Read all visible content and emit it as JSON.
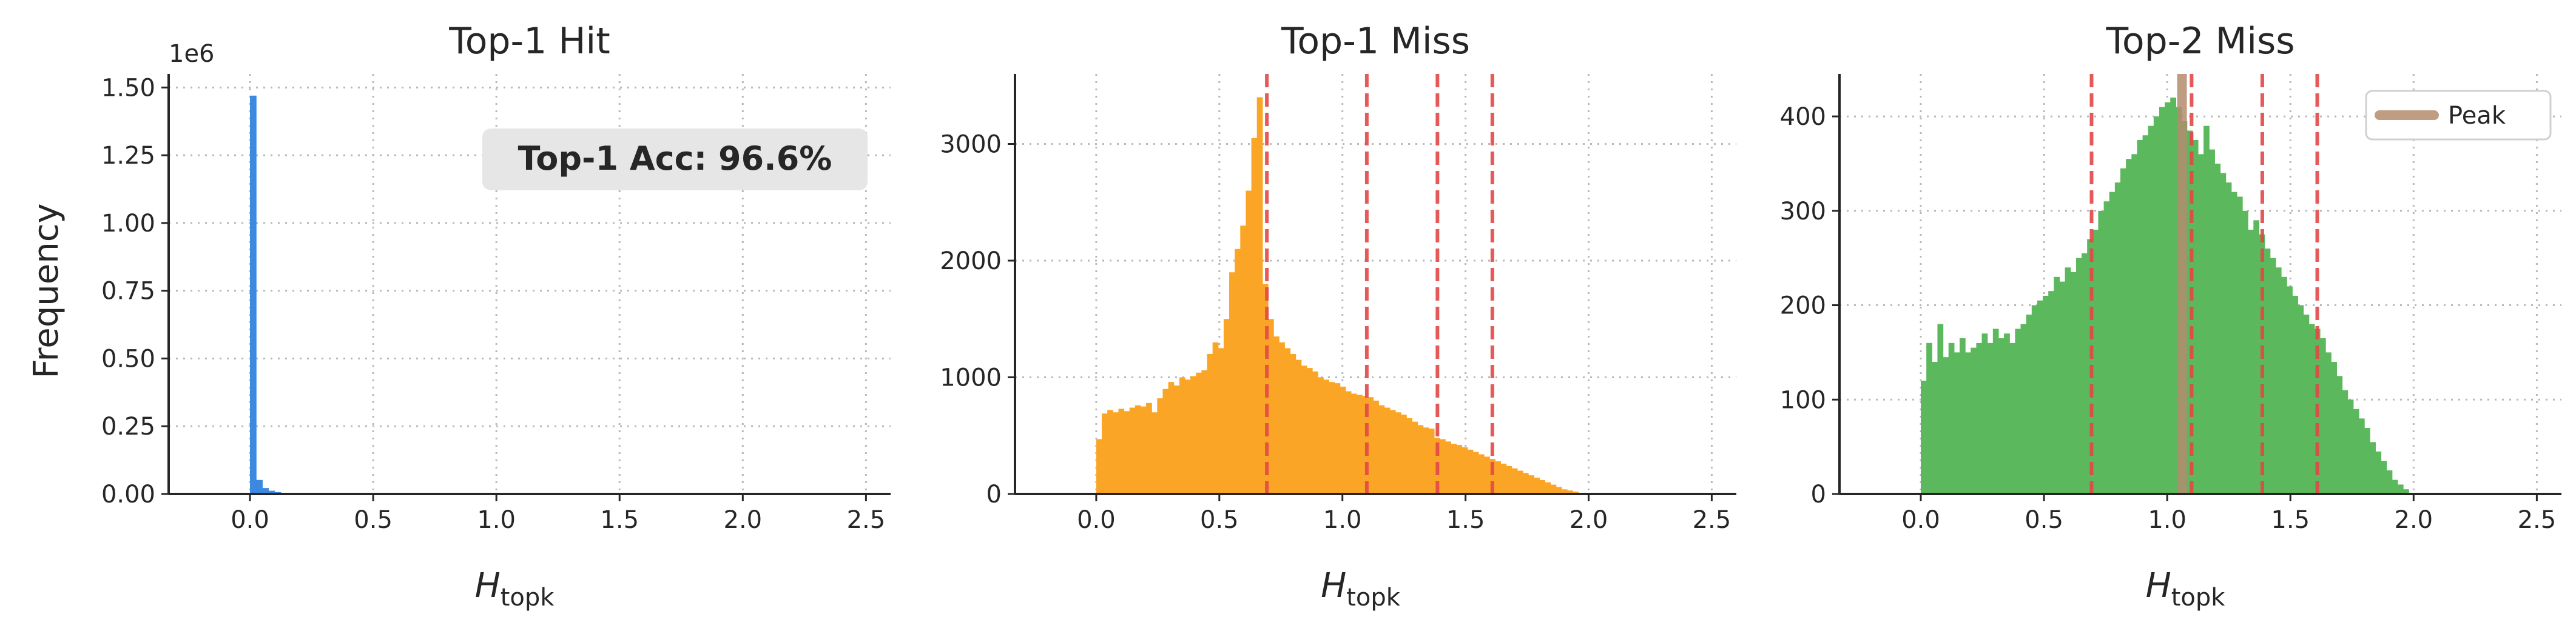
{
  "figure": {
    "ylabel": "Frequency",
    "xlabel_main": "H",
    "xlabel_sub": "topk"
  },
  "chart_data": [
    {
      "type": "bar",
      "title": "Top-1 Hit",
      "color": "#3b89e0",
      "xlim": [
        -0.33,
        2.6
      ],
      "ylim": [
        0,
        1550000
      ],
      "x_ticks": [
        0.0,
        0.5,
        1.0,
        1.5,
        2.0,
        2.5
      ],
      "x_tick_labels": [
        "0.0",
        "0.5",
        "1.0",
        "1.5",
        "2.0",
        "2.5"
      ],
      "y_ticks": [
        0,
        250000,
        500000,
        750000,
        1000000,
        1250000,
        1500000
      ],
      "y_tick_labels": [
        "0.00",
        "0.25",
        "0.50",
        "0.75",
        "1.00",
        "1.25",
        "1.50"
      ],
      "y_offset_text": "1e6",
      "annotation": "Top-1 Acc: 96.6%",
      "bin_start": 0.0,
      "bin_width": 0.025,
      "values": [
        1470000,
        52000,
        22000,
        12000,
        7000,
        4000,
        2500,
        1500,
        900,
        500
      ]
    },
    {
      "type": "bar",
      "title": "Top-1 Miss",
      "color": "#fba526",
      "xlim": [
        -0.33,
        2.6
      ],
      "ylim": [
        0,
        3600
      ],
      "x_ticks": [
        0.0,
        0.5,
        1.0,
        1.5,
        2.0,
        2.5
      ],
      "x_tick_labels": [
        "0.0",
        "0.5",
        "1.0",
        "1.5",
        "2.0",
        "2.5"
      ],
      "y_ticks": [
        0,
        1000,
        2000,
        3000
      ],
      "y_tick_labels": [
        "0",
        "1000",
        "2000",
        "3000"
      ],
      "vlines": [
        0.693,
        1.099,
        1.386,
        1.609
      ],
      "bin_start": 0.0,
      "bin_width": 0.0225,
      "values": [
        470,
        690,
        720,
        700,
        730,
        710,
        740,
        760,
        750,
        780,
        700,
        820,
        900,
        960,
        930,
        1000,
        980,
        1010,
        1040,
        1060,
        1200,
        1300,
        1250,
        1500,
        1900,
        2100,
        2300,
        2600,
        3050,
        3400,
        1800,
        1500,
        1350,
        1300,
        1250,
        1200,
        1150,
        1100,
        1080,
        1050,
        1000,
        980,
        960,
        950,
        920,
        880,
        860,
        850,
        840,
        830,
        800,
        760,
        740,
        720,
        700,
        680,
        650,
        620,
        590,
        570,
        560,
        480,
        470,
        450,
        430,
        420,
        400,
        380,
        360,
        340,
        320,
        300,
        280,
        260,
        240,
        220,
        200,
        180,
        160,
        140,
        120,
        100,
        80,
        60,
        40,
        30,
        20,
        10,
        5,
        0
      ]
    },
    {
      "type": "bar",
      "title": "Top-2 Miss",
      "color": "#5cb85c",
      "xlim": [
        -0.33,
        2.6
      ],
      "ylim": [
        0,
        445
      ],
      "x_ticks": [
        0.0,
        0.5,
        1.0,
        1.5,
        2.0,
        2.5
      ],
      "x_tick_labels": [
        "0.0",
        "0.5",
        "1.0",
        "1.5",
        "2.0",
        "2.5"
      ],
      "y_ticks": [
        0,
        100,
        200,
        300,
        400
      ],
      "y_tick_labels": [
        "0",
        "100",
        "200",
        "300",
        "400"
      ],
      "vlines": [
        0.693,
        1.099,
        1.386,
        1.609
      ],
      "peak": 1.06,
      "peak_color": "#b48c6e",
      "legend": [
        "Peak"
      ],
      "legend_position": "upper right",
      "bin_start": 0.0,
      "bin_width": 0.0225,
      "values": [
        120,
        160,
        140,
        180,
        145,
        160,
        150,
        165,
        150,
        155,
        160,
        170,
        160,
        175,
        165,
        170,
        160,
        175,
        180,
        190,
        200,
        205,
        210,
        215,
        230,
        225,
        240,
        235,
        250,
        255,
        270,
        280,
        300,
        310,
        320,
        330,
        345,
        355,
        360,
        375,
        380,
        390,
        400,
        410,
        415,
        420,
        410,
        395,
        385,
        375,
        360,
        390,
        365,
        350,
        340,
        330,
        320,
        315,
        300,
        280,
        290,
        275,
        260,
        250,
        240,
        230,
        220,
        210,
        200,
        190,
        180,
        175,
        165,
        150,
        140,
        125,
        110,
        100,
        90,
        80,
        70,
        55,
        45,
        35,
        25,
        15,
        10,
        5,
        0
      ]
    }
  ]
}
